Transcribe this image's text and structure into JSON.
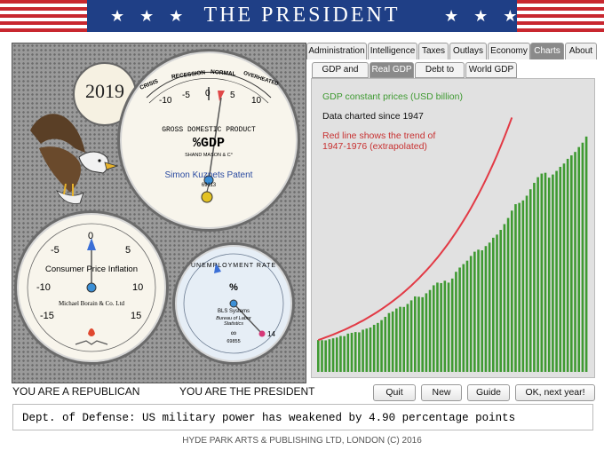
{
  "header": {
    "title": "THE PRESIDENT",
    "stars_left": "★ ★ ★",
    "stars_right": "★ ★ ★"
  },
  "year": "2019",
  "gdp_gauge": {
    "scale_words": [
      "CRISIS",
      "RECESSION",
      "NORMAL",
      "OVERHEATED"
    ],
    "ticks": [
      "-10",
      "-5",
      "0",
      "5",
      "10"
    ],
    "caption": "GROSS DOMESTIC PRODUCT",
    "unit": "%GDP",
    "maker": "SHAND MASON & C°",
    "patent": "Simon Kuznets Patent",
    "serial": "69113"
  },
  "inflation_gauge": {
    "ticks": [
      "-5",
      "0",
      "5",
      "-10",
      "10",
      "-15",
      "15"
    ],
    "caption": "Consumer Price Inflation",
    "maker": "Michael Borain & Co. Ltd"
  },
  "unemployment_gauge": {
    "label": "UNEMPLOYMENT RATE",
    "unit": "%",
    "maker": "BLS Systems",
    "sub": "Bureau of Labor Statistics",
    "serial": "69855",
    "marker": "14",
    "infinity": "∞"
  },
  "tabs": [
    "Administration",
    "Intelligence",
    "Taxes",
    "Outlays",
    "Economy",
    "Charts",
    "About"
  ],
  "active_tab": "Charts",
  "subtabs": [
    "GDP and debt",
    "Real GDP",
    "Debt to GDP",
    "World GDP"
  ],
  "active_subtab": "Real GDP",
  "colors": {
    "bar": "#3f9a32",
    "trend": "#e23a45",
    "title_green": "#3f9a32",
    "note_red": "#c83232"
  },
  "chart_data": {
    "type": "bar",
    "title": "GDP constant prices (USD billion)",
    "note": "Data charted since 1947",
    "trend_note_line1": "Red line shows the trend of",
    "trend_note_line2": "1947-1976 (extrapolated)",
    "start_year": 1947,
    "end_year": 2019,
    "values": [
      2030,
      2020,
      2010,
      2080,
      2140,
      2190,
      2290,
      2280,
      2440,
      2490,
      2540,
      2520,
      2690,
      2760,
      2830,
      3000,
      3120,
      3300,
      3510,
      3750,
      3850,
      4040,
      4150,
      4140,
      4330,
      4560,
      4810,
      4790,
      4760,
      5010,
      5220,
      5520,
      5690,
      5660,
      5810,
      5690,
      5950,
      6380,
      6650,
      6870,
      7090,
      7390,
      7660,
      7790,
      7750,
      8020,
      8240,
      8550,
      8750,
      9050,
      9420,
      9810,
      10280,
      10690,
      10770,
      10930,
      11230,
      11640,
      12050,
      12410,
      12640,
      12690,
      12380,
      12580,
      12810,
      13070,
      13280,
      13580,
      13800,
      14020,
      14330,
      14610,
      15000
    ],
    "trend_values": [
      2030,
      2110,
      2200,
      2290,
      2380,
      2480,
      2580,
      2680,
      2790,
      2910,
      3020,
      3150,
      3270,
      3410,
      3550,
      3690,
      3840,
      4000,
      4160,
      4330,
      4510,
      4690,
      4880,
      5080,
      5290,
      5500,
      5730,
      5960,
      6210,
      6460,
      6720,
      7000,
      7280,
      7580,
      7890,
      8210,
      8550,
      8900,
      9260,
      9640,
      10030,
      10440,
      10870,
      11310,
      11770,
      12250,
      12750,
      13270,
      13810,
      14380,
      14970,
      15580,
      16210
    ]
  },
  "labels": {
    "republican": "YOU ARE A REPUBLICAN",
    "president": "YOU ARE THE PRESIDENT"
  },
  "buttons": {
    "quit": "Quit",
    "new": "New",
    "guide": "Guide",
    "next": "OK, next year!"
  },
  "message": "Dept. of Defense: US military power has weakened by 4.90 percentage points",
  "footer": "HYDE PARK ARTS & PUBLISHING LTD, LONDON (C) 2016"
}
